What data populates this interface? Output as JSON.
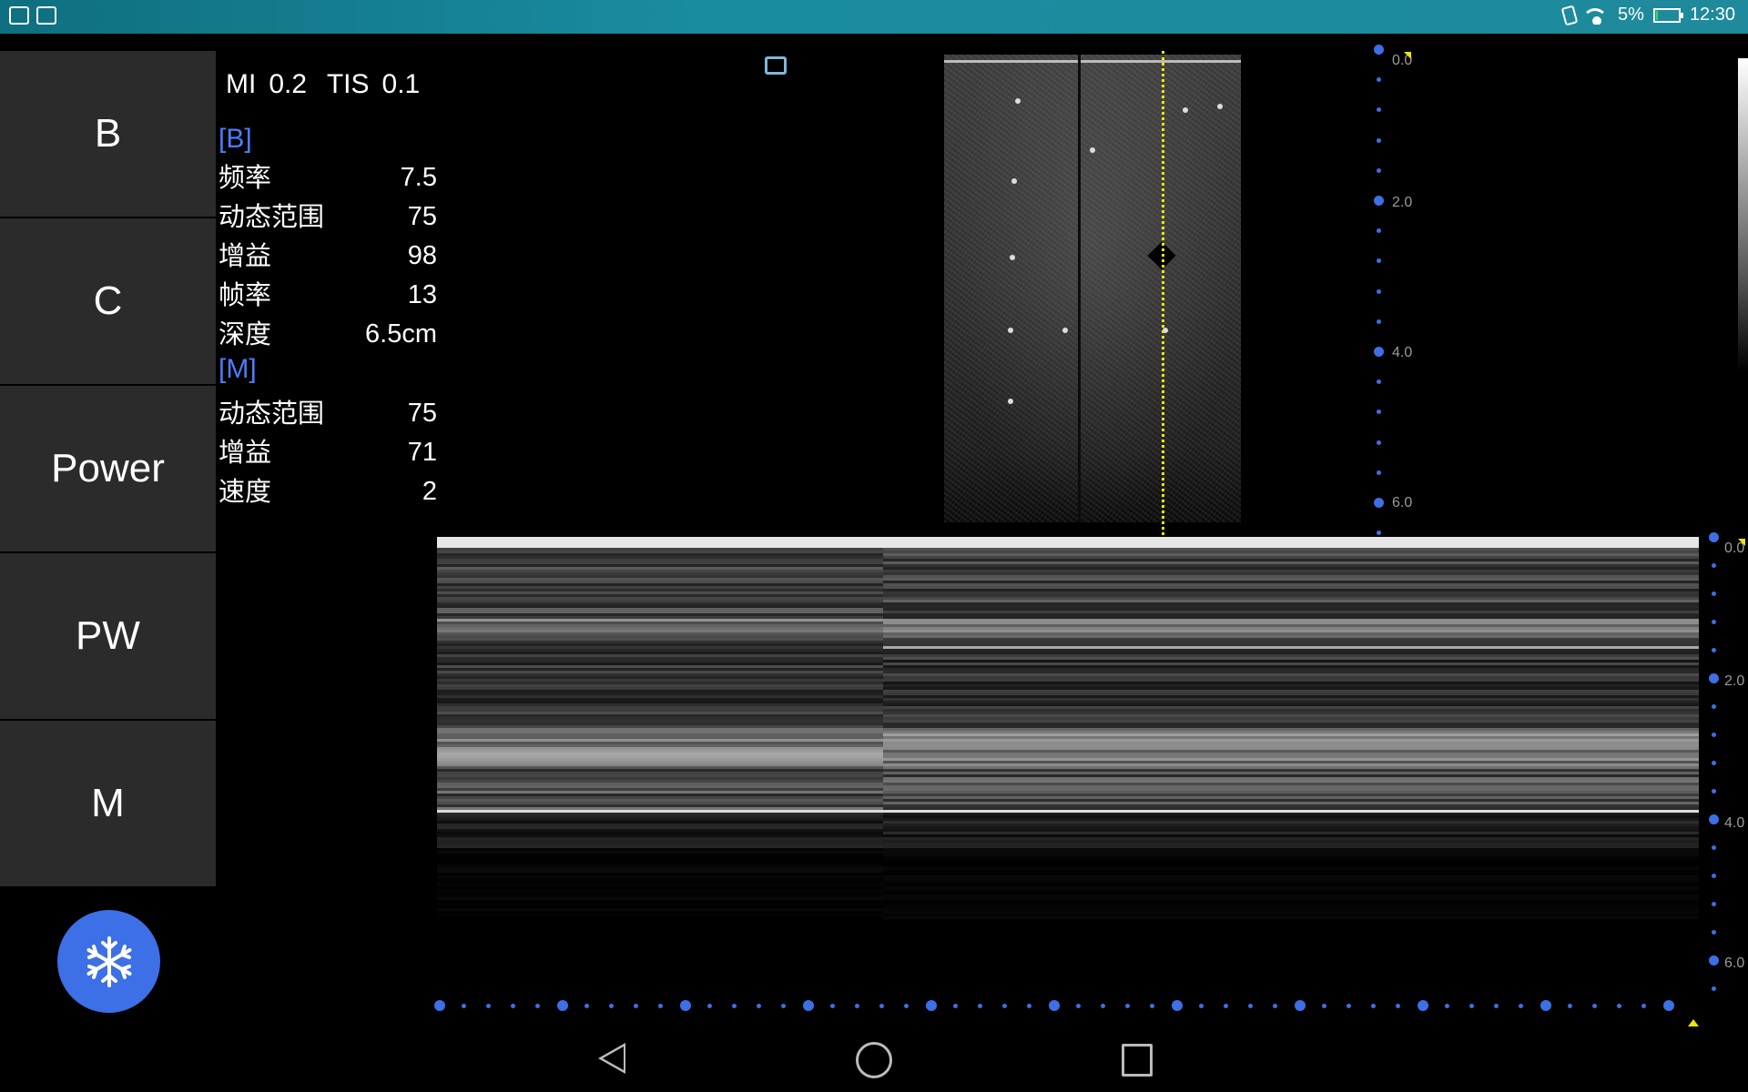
{
  "status_bar": {
    "battery": "5%",
    "time": "12:30",
    "battery_level": 0.05,
    "colors": {
      "bar": "#1a8ca0",
      "battery_charge": "#2ee05a"
    }
  },
  "modes": [
    {
      "label": "B"
    },
    {
      "label": "C"
    },
    {
      "label": "Power"
    },
    {
      "label": "PW"
    },
    {
      "label": "M"
    }
  ],
  "freeze_icon": "snowflake-icon",
  "params": {
    "mi_label": "MI",
    "mi_value": "0.2",
    "tis_label": "TIS",
    "tis_value": "0.1",
    "b_section": "[B]",
    "b_rows": [
      {
        "label": "频率",
        "value": "7.5"
      },
      {
        "label": "动态范围",
        "value": "75"
      },
      {
        "label": "增益",
        "value": "98"
      },
      {
        "label": "帧率",
        "value": "13"
      },
      {
        "label": "深度",
        "value": "6.5cm"
      }
    ],
    "m_section": "[M]",
    "m_rows": [
      {
        "label": "动态范围",
        "value": "75"
      },
      {
        "label": "增益",
        "value": "71"
      },
      {
        "label": "速度",
        "value": "2"
      }
    ]
  },
  "b_scale": {
    "labels": [
      "0.0",
      "2.0",
      "4.0",
      "6.0"
    ]
  },
  "m_scale": {
    "labels": [
      "0.0",
      "2.0",
      "4.0",
      "6.0"
    ]
  },
  "colors": {
    "accent": "#3d6fe6",
    "section": "#4d7cff",
    "m_line": "#f2e500",
    "panel": "#2b2b2b"
  },
  "nav": {
    "back_icon": "back-triangle-icon",
    "home_icon": "home-circle-icon",
    "recent_icon": "recent-square-icon"
  }
}
